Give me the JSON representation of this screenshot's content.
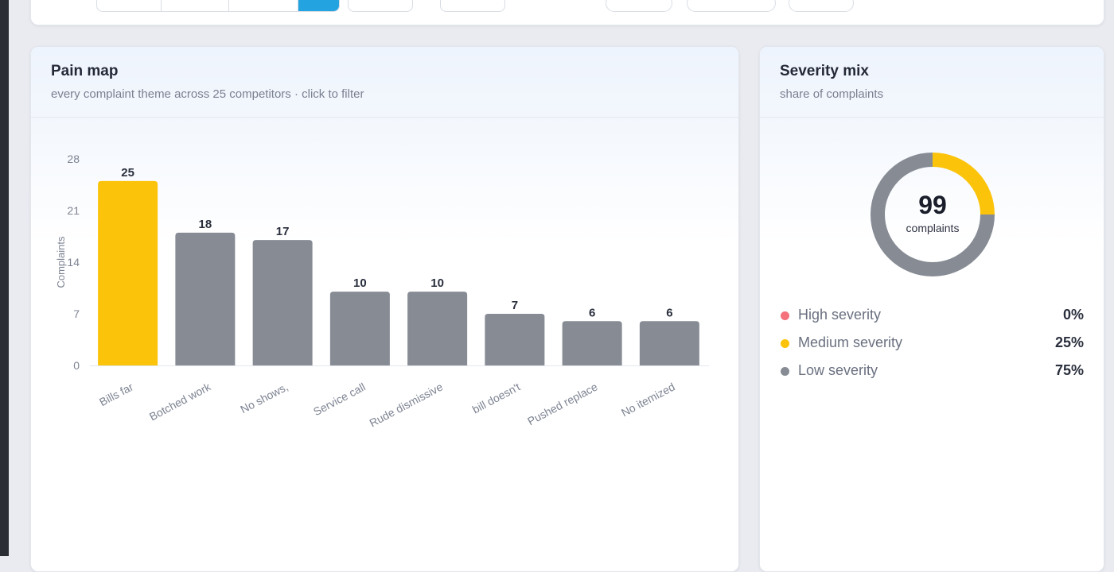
{
  "pain_map": {
    "title": "Pain map",
    "subtitle": "every complaint theme across 25 competitors · click to filter",
    "chart_data": {
      "type": "bar",
      "ylabel": "Complaints",
      "xlabel": "",
      "ylim": [
        0,
        28
      ],
      "yticks": [
        0,
        7,
        14,
        21,
        28
      ],
      "categories": [
        "Bills far",
        "Botched work",
        "No shows,",
        "Service call",
        "Rude dismissive",
        "bill doesn't",
        "Pushed replace",
        "No itemized"
      ],
      "values": [
        25,
        18,
        17,
        10,
        10,
        7,
        6,
        6
      ],
      "bar_colors": [
        "#fbc30a",
        "#868b94",
        "#868b94",
        "#868b94",
        "#868b94",
        "#868b94",
        "#868b94",
        "#868b94"
      ],
      "highlighted_index": 0,
      "grid": false
    }
  },
  "severity_mix": {
    "title": "Severity mix",
    "subtitle": "share of complaints",
    "total": "99",
    "total_label": "complaints",
    "chart_data": {
      "type": "pie",
      "donut": true,
      "categories": [
        "High severity",
        "Medium severity",
        "Low severity"
      ],
      "values": [
        0,
        25,
        75
      ],
      "colors": [
        "#f4707a",
        "#fbc30a",
        "#868b94"
      ]
    },
    "legend": [
      {
        "label": "High severity",
        "pct": "0%",
        "color": "#f4707a"
      },
      {
        "label": "Medium severity",
        "pct": "25%",
        "color": "#fbc30a"
      },
      {
        "label": "Low severity",
        "pct": "75%",
        "color": "#868b94"
      }
    ]
  }
}
